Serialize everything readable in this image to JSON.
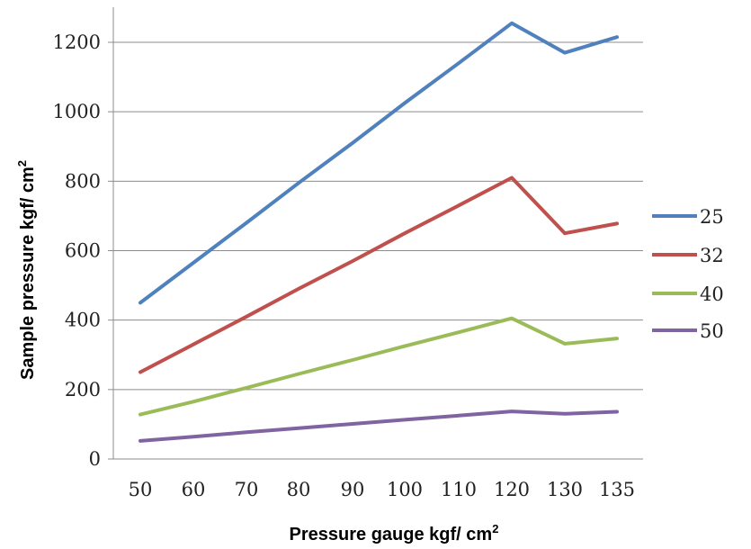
{
  "chart_data": {
    "type": "line",
    "title": "",
    "xlabel": "Pressure gauge kgf/ cm",
    "xlabel_sup": "2",
    "ylabel": "Sample pressure kgf/ cm",
    "ylabel_sup": "2",
    "categories": [
      "50",
      "60",
      "70",
      "80",
      "90",
      "100",
      "110",
      "120",
      "130",
      "135"
    ],
    "ylim": [
      0,
      1200
    ],
    "yticks": [
      "0",
      "200",
      "400",
      "600",
      "800",
      "1000",
      "1200"
    ],
    "grid": true,
    "legend_position": "right",
    "series": [
      {
        "name": "25",
        "color": "#4F81BD",
        "values": [
          450,
          565,
          680,
          795,
          910,
          1025,
          1140,
          1255,
          1170,
          1215
        ]
      },
      {
        "name": "32",
        "color": "#C0504D",
        "values": [
          250,
          330,
          410,
          490,
          570,
          650,
          730,
          810,
          650,
          678
        ]
      },
      {
        "name": "40",
        "color": "#9BBB59",
        "values": [
          128,
          165,
          205,
          245,
          285,
          325,
          365,
          405,
          332,
          347
        ]
      },
      {
        "name": "50",
        "color": "#8064A2",
        "values": [
          52,
          64,
          77,
          89,
          101,
          113,
          125,
          137,
          130,
          136
        ]
      }
    ]
  }
}
